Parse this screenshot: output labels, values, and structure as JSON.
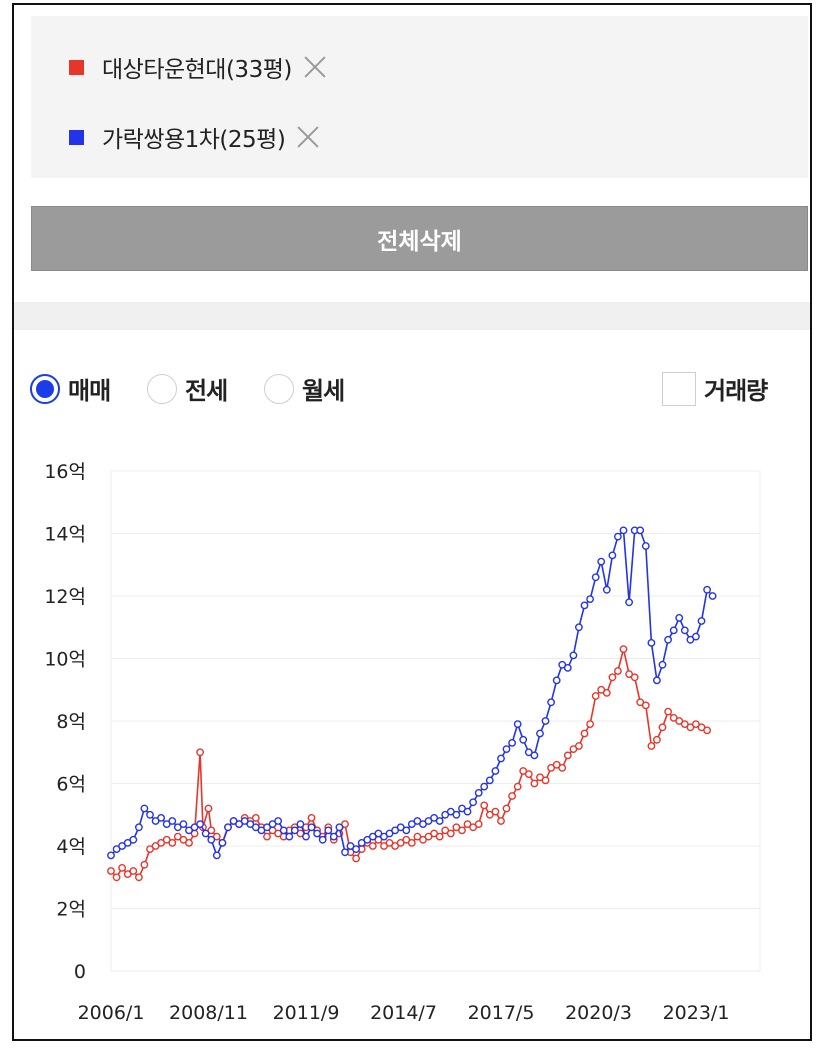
{
  "compare_list": {
    "items": [
      {
        "label": "대상타운현대(33평)",
        "color": "#e8352a"
      },
      {
        "label": "가락쌍용1차(25평)",
        "color": "#2233e8"
      }
    ],
    "remove_icon": "close-icon"
  },
  "delete_all_label": "전체삭제",
  "trade_types": [
    {
      "label": "매매",
      "selected": true
    },
    {
      "label": "전세",
      "selected": false
    },
    {
      "label": "월세",
      "selected": false
    }
  ],
  "volume_toggle": {
    "label": "거래량",
    "checked": false
  },
  "chart_data": {
    "type": "line",
    "x_tick_labels": [
      "2006/1",
      "2008/11",
      "2011/9",
      "2014/7",
      "2017/5",
      "2020/3",
      "2023/1"
    ],
    "x_range": [
      "2006-01",
      "2025-06"
    ],
    "y_tick_labels": [
      "0",
      "2억",
      "4억",
      "6억",
      "8억",
      "10억",
      "12억",
      "14억",
      "16억"
    ],
    "ylim": [
      0,
      16
    ],
    "grid": true,
    "series": [
      {
        "name": "대상타운현대(33평)",
        "color": "#e8352a",
        "points": [
          [
            "2006-01",
            3.2
          ],
          [
            "2006-03",
            3.0
          ],
          [
            "2006-05",
            3.3
          ],
          [
            "2006-07",
            3.1
          ],
          [
            "2006-09",
            3.2
          ],
          [
            "2006-11",
            3.0
          ],
          [
            "2007-01",
            3.4
          ],
          [
            "2007-03",
            3.9
          ],
          [
            "2007-05",
            4.0
          ],
          [
            "2007-07",
            4.1
          ],
          [
            "2007-09",
            4.2
          ],
          [
            "2007-11",
            4.1
          ],
          [
            "2008-01",
            4.3
          ],
          [
            "2008-03",
            4.2
          ],
          [
            "2008-05",
            4.1
          ],
          [
            "2008-07",
            4.4
          ],
          [
            "2008-09",
            7.0
          ],
          [
            "2008-10",
            4.6
          ],
          [
            "2008-12",
            5.2
          ],
          [
            "2009-01",
            4.5
          ],
          [
            "2009-03",
            4.3
          ],
          [
            "2009-05",
            4.1
          ],
          [
            "2009-07",
            4.6
          ],
          [
            "2009-09",
            4.8
          ],
          [
            "2009-11",
            4.7
          ],
          [
            "2010-01",
            4.9
          ],
          [
            "2010-03",
            4.8
          ],
          [
            "2010-05",
            4.9
          ],
          [
            "2010-07",
            4.6
          ],
          [
            "2010-09",
            4.3
          ],
          [
            "2010-11",
            4.5
          ],
          [
            "2011-01",
            4.4
          ],
          [
            "2011-03",
            4.3
          ],
          [
            "2011-05",
            4.5
          ],
          [
            "2011-07",
            4.6
          ],
          [
            "2011-09",
            4.4
          ],
          [
            "2011-11",
            4.6
          ],
          [
            "2012-01",
            4.9
          ],
          [
            "2012-03",
            4.5
          ],
          [
            "2012-05",
            4.3
          ],
          [
            "2012-07",
            4.6
          ],
          [
            "2012-09",
            4.2
          ],
          [
            "2012-11",
            4.4
          ],
          [
            "2013-01",
            4.7
          ],
          [
            "2013-03",
            3.8
          ],
          [
            "2013-05",
            3.6
          ],
          [
            "2013-07",
            3.9
          ],
          [
            "2013-09",
            4.1
          ],
          [
            "2013-11",
            4.0
          ],
          [
            "2014-01",
            4.2
          ],
          [
            "2014-03",
            4.0
          ],
          [
            "2014-05",
            4.1
          ],
          [
            "2014-07",
            4.0
          ],
          [
            "2014-09",
            4.1
          ],
          [
            "2014-11",
            4.2
          ],
          [
            "2015-01",
            4.1
          ],
          [
            "2015-03",
            4.3
          ],
          [
            "2015-05",
            4.2
          ],
          [
            "2015-07",
            4.3
          ],
          [
            "2015-09",
            4.4
          ],
          [
            "2015-11",
            4.3
          ],
          [
            "2016-01",
            4.5
          ],
          [
            "2016-03",
            4.4
          ],
          [
            "2016-05",
            4.6
          ],
          [
            "2016-07",
            4.5
          ],
          [
            "2016-09",
            4.7
          ],
          [
            "2016-11",
            4.6
          ],
          [
            "2017-01",
            4.7
          ],
          [
            "2017-03",
            5.3
          ],
          [
            "2017-05",
            5.0
          ],
          [
            "2017-07",
            5.1
          ],
          [
            "2017-09",
            4.8
          ],
          [
            "2017-11",
            5.2
          ],
          [
            "2018-01",
            5.6
          ],
          [
            "2018-03",
            5.9
          ],
          [
            "2018-05",
            6.4
          ],
          [
            "2018-07",
            6.3
          ],
          [
            "2018-09",
            6.0
          ],
          [
            "2018-11",
            6.2
          ],
          [
            "2019-01",
            6.1
          ],
          [
            "2019-03",
            6.5
          ],
          [
            "2019-05",
            6.6
          ],
          [
            "2019-07",
            6.5
          ],
          [
            "2019-09",
            6.9
          ],
          [
            "2019-11",
            7.1
          ],
          [
            "2020-01",
            7.2
          ],
          [
            "2020-03",
            7.6
          ],
          [
            "2020-05",
            7.9
          ],
          [
            "2020-07",
            8.8
          ],
          [
            "2020-09",
            9.0
          ],
          [
            "2020-11",
            8.9
          ],
          [
            "2021-01",
            9.4
          ],
          [
            "2021-03",
            9.6
          ],
          [
            "2021-05",
            10.3
          ],
          [
            "2021-07",
            9.5
          ],
          [
            "2021-09",
            9.4
          ],
          [
            "2021-11",
            8.6
          ],
          [
            "2022-01",
            8.5
          ],
          [
            "2022-03",
            7.2
          ],
          [
            "2022-05",
            7.4
          ],
          [
            "2022-07",
            7.8
          ],
          [
            "2022-09",
            8.3
          ],
          [
            "2022-11",
            8.1
          ],
          [
            "2023-01",
            8.0
          ],
          [
            "2023-03",
            7.9
          ],
          [
            "2023-05",
            7.8
          ],
          [
            "2023-07",
            7.9
          ],
          [
            "2023-09",
            7.8
          ],
          [
            "2023-11",
            7.7
          ]
        ]
      },
      {
        "name": "가락쌍용1차(25평)",
        "color": "#2233e8",
        "points": [
          [
            "2006-01",
            3.7
          ],
          [
            "2006-03",
            3.9
          ],
          [
            "2006-05",
            4.0
          ],
          [
            "2006-07",
            4.1
          ],
          [
            "2006-09",
            4.2
          ],
          [
            "2006-11",
            4.6
          ],
          [
            "2007-01",
            5.2
          ],
          [
            "2007-03",
            5.0
          ],
          [
            "2007-05",
            4.8
          ],
          [
            "2007-07",
            4.9
          ],
          [
            "2007-09",
            4.7
          ],
          [
            "2007-11",
            4.8
          ],
          [
            "2008-01",
            4.6
          ],
          [
            "2008-03",
            4.7
          ],
          [
            "2008-05",
            4.5
          ],
          [
            "2008-07",
            4.6
          ],
          [
            "2008-09",
            4.7
          ],
          [
            "2008-11",
            4.4
          ],
          [
            "2009-01",
            4.2
          ],
          [
            "2009-03",
            3.7
          ],
          [
            "2009-05",
            4.1
          ],
          [
            "2009-07",
            4.6
          ],
          [
            "2009-09",
            4.8
          ],
          [
            "2009-11",
            4.7
          ],
          [
            "2010-01",
            4.8
          ],
          [
            "2010-03",
            4.7
          ],
          [
            "2010-05",
            4.6
          ],
          [
            "2010-07",
            4.5
          ],
          [
            "2010-09",
            4.6
          ],
          [
            "2010-11",
            4.7
          ],
          [
            "2011-01",
            4.8
          ],
          [
            "2011-03",
            4.5
          ],
          [
            "2011-05",
            4.3
          ],
          [
            "2011-07",
            4.5
          ],
          [
            "2011-09",
            4.7
          ],
          [
            "2011-11",
            4.3
          ],
          [
            "2012-01",
            4.6
          ],
          [
            "2012-03",
            4.4
          ],
          [
            "2012-05",
            4.2
          ],
          [
            "2012-07",
            4.5
          ],
          [
            "2012-09",
            4.3
          ],
          [
            "2012-11",
            4.6
          ],
          [
            "2013-01",
            3.8
          ],
          [
            "2013-03",
            4.0
          ],
          [
            "2013-05",
            3.9
          ],
          [
            "2013-07",
            4.1
          ],
          [
            "2013-09",
            4.2
          ],
          [
            "2013-11",
            4.3
          ],
          [
            "2014-01",
            4.4
          ],
          [
            "2014-03",
            4.3
          ],
          [
            "2014-05",
            4.4
          ],
          [
            "2014-07",
            4.5
          ],
          [
            "2014-09",
            4.6
          ],
          [
            "2014-11",
            4.5
          ],
          [
            "2015-01",
            4.7
          ],
          [
            "2015-03",
            4.8
          ],
          [
            "2015-05",
            4.7
          ],
          [
            "2015-07",
            4.8
          ],
          [
            "2015-09",
            4.9
          ],
          [
            "2015-11",
            4.8
          ],
          [
            "2016-01",
            5.0
          ],
          [
            "2016-03",
            5.1
          ],
          [
            "2016-05",
            5.0
          ],
          [
            "2016-07",
            5.2
          ],
          [
            "2016-09",
            5.1
          ],
          [
            "2016-11",
            5.4
          ],
          [
            "2017-01",
            5.7
          ],
          [
            "2017-03",
            5.9
          ],
          [
            "2017-05",
            6.1
          ],
          [
            "2017-07",
            6.4
          ],
          [
            "2017-09",
            6.8
          ],
          [
            "2017-11",
            7.1
          ],
          [
            "2018-01",
            7.3
          ],
          [
            "2018-03",
            7.9
          ],
          [
            "2018-05",
            7.4
          ],
          [
            "2018-07",
            7.0
          ],
          [
            "2018-09",
            6.9
          ],
          [
            "2018-11",
            7.6
          ],
          [
            "2019-01",
            8.0
          ],
          [
            "2019-03",
            8.6
          ],
          [
            "2019-05",
            9.3
          ],
          [
            "2019-07",
            9.8
          ],
          [
            "2019-09",
            9.7
          ],
          [
            "2019-11",
            10.1
          ],
          [
            "2020-01",
            11.0
          ],
          [
            "2020-03",
            11.7
          ],
          [
            "2020-05",
            11.9
          ],
          [
            "2020-07",
            12.6
          ],
          [
            "2020-09",
            13.1
          ],
          [
            "2020-11",
            12.2
          ],
          [
            "2021-01",
            13.3
          ],
          [
            "2021-03",
            13.9
          ],
          [
            "2021-05",
            14.1
          ],
          [
            "2021-07",
            11.8
          ],
          [
            "2021-09",
            14.1
          ],
          [
            "2021-11",
            14.1
          ],
          [
            "2022-01",
            13.6
          ],
          [
            "2022-03",
            10.5
          ],
          [
            "2022-05",
            9.3
          ],
          [
            "2022-07",
            9.8
          ],
          [
            "2022-09",
            10.6
          ],
          [
            "2022-11",
            10.9
          ],
          [
            "2023-01",
            11.3
          ],
          [
            "2023-03",
            10.9
          ],
          [
            "2023-05",
            10.6
          ],
          [
            "2023-07",
            10.7
          ],
          [
            "2023-09",
            11.2
          ],
          [
            "2023-11",
            12.2
          ],
          [
            "2024-01",
            12.0
          ]
        ]
      }
    ]
  }
}
